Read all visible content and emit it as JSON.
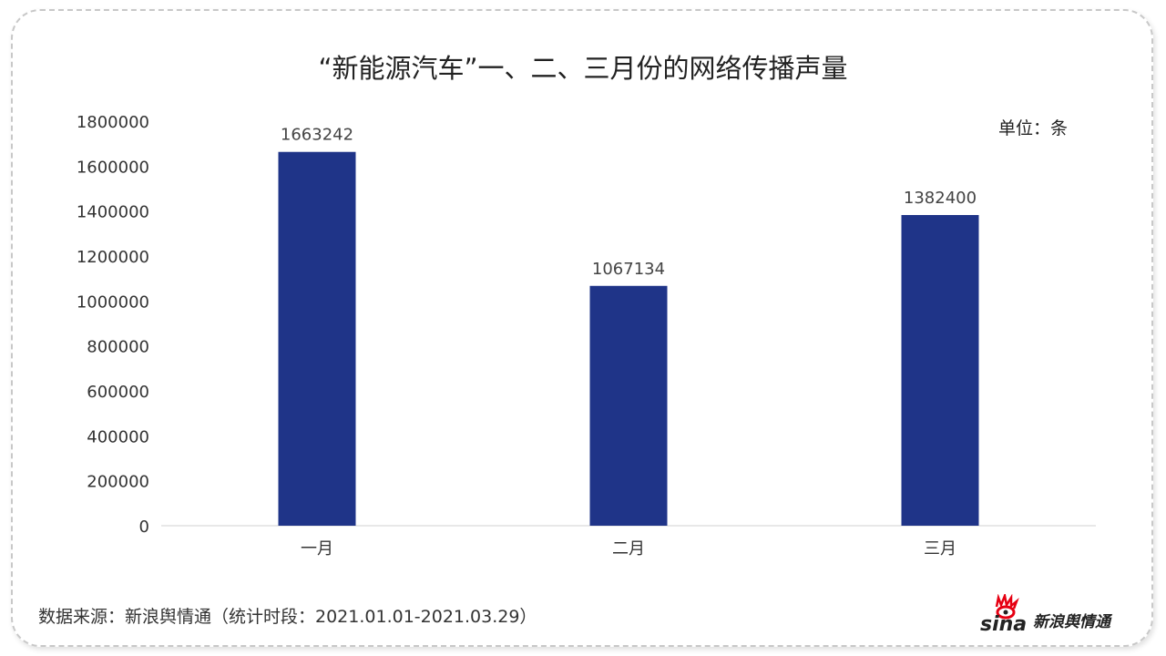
{
  "chart_data": {
    "type": "bar",
    "title": "“新能源汽车”一、二、三月份的网络传播声量",
    "unit_label": "单位：条",
    "categories": [
      "一月",
      "二月",
      "三月"
    ],
    "values": [
      1663242,
      1067134,
      1382400
    ],
    "data_labels": [
      "1663242",
      "1067134",
      "1382400"
    ],
    "ylim": [
      0,
      1800000
    ],
    "yticks": [
      "0",
      "200000",
      "400000",
      "600000",
      "800000",
      "1000000",
      "1200000",
      "1400000",
      "1600000",
      "1800000"
    ],
    "grid": false,
    "bar_color": "#1f3488"
  },
  "footer": {
    "source": "数据来源：新浪舆情通（统计时段：2021.01.01-2021.03.29）",
    "logo_text": "sina新浪舆情通"
  }
}
